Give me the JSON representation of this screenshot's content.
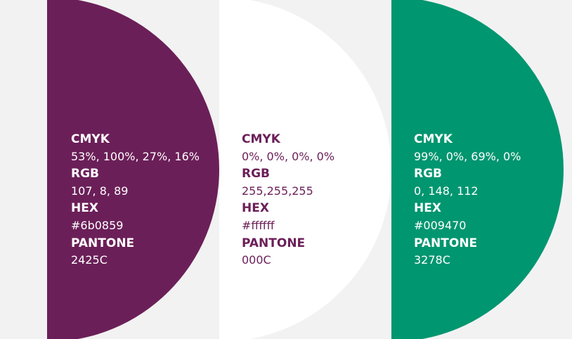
{
  "swatches": [
    {
      "color": "#6b1f58",
      "text_color": "#ffffff",
      "labels": {
        "cmyk": "CMYK",
        "rgb": "RGB",
        "hex": "HEX",
        "pantone": "PANTONE"
      },
      "cmyk": "53%, 100%, 27%, 16%",
      "rgb": "107, 8, 89",
      "hex": "#6b0859",
      "pantone": "2425C"
    },
    {
      "color": "#ffffff",
      "text_color": "#6b1f58",
      "labels": {
        "cmyk": "CMYK",
        "rgb": "RGB",
        "hex": "HEX",
        "pantone": "PANTONE"
      },
      "cmyk": "0%, 0%, 0%, 0%",
      "rgb": "255,255,255",
      "hex": "#ffffff",
      "pantone": "000C"
    },
    {
      "color": "#009670",
      "text_color": "#ffffff",
      "labels": {
        "cmyk": "CMYK",
        "rgb": "RGB",
        "hex": "HEX",
        "pantone": "PANTONE"
      },
      "cmyk": "99%, 0%, 69%, 0%",
      "rgb": "0, 148, 112",
      "hex": "#009470",
      "pantone": "3278C"
    }
  ],
  "background": "#f2f2f2"
}
